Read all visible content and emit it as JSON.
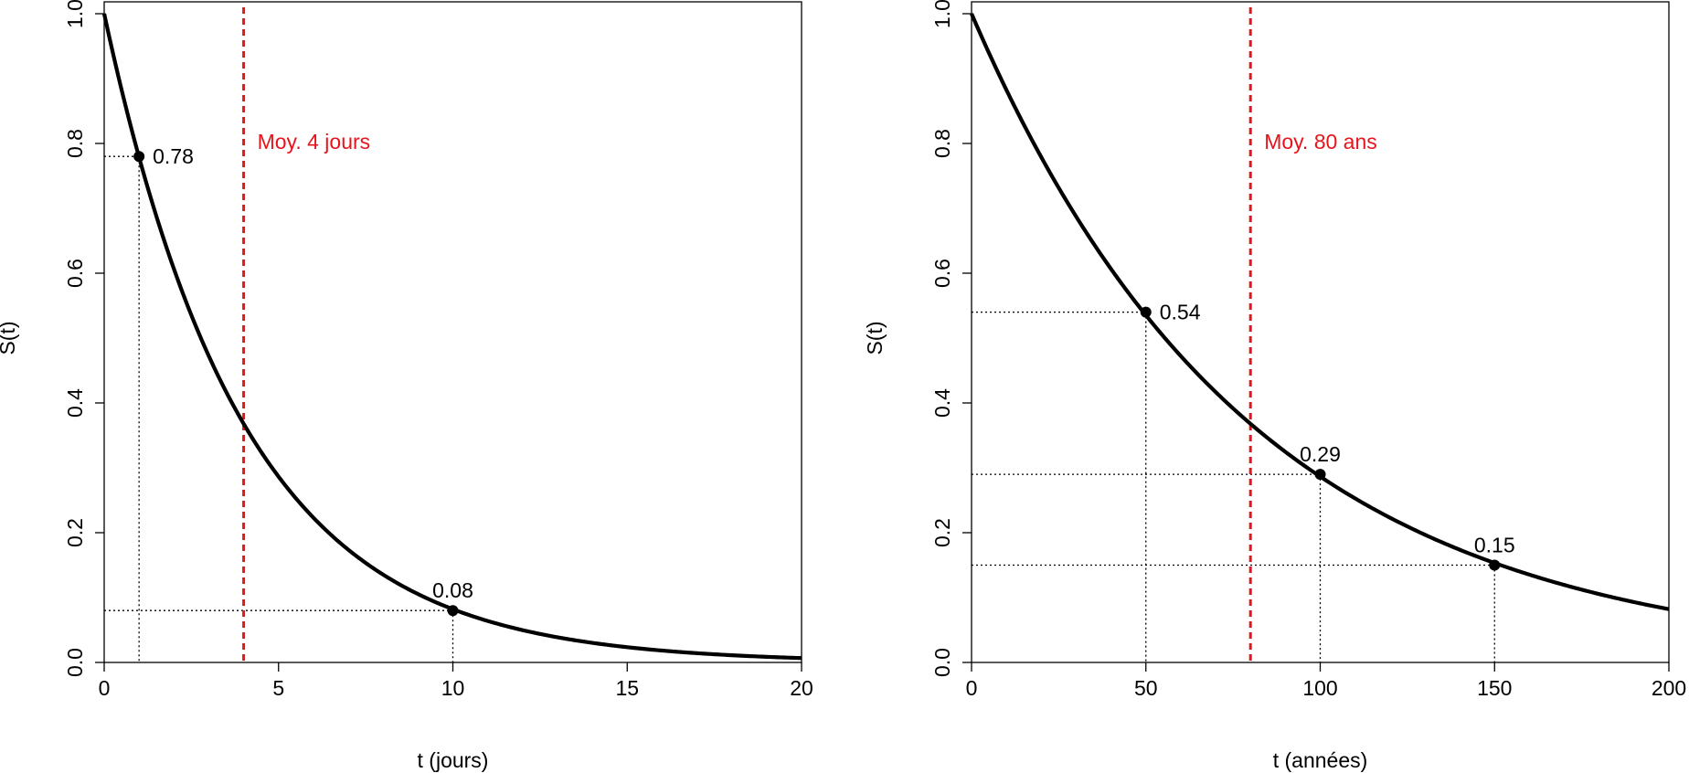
{
  "chart_data": [
    {
      "type": "line",
      "title": "",
      "xlabel": "t (jours)",
      "ylabel": "S(t)",
      "xlim": [
        0,
        20
      ],
      "ylim": [
        0,
        1
      ],
      "xticks": [
        0,
        5,
        10,
        15,
        20
      ],
      "yticks": [
        0.0,
        0.2,
        0.4,
        0.6,
        0.8,
        1.0
      ],
      "ytick_labels": [
        "0.0",
        "0.2",
        "0.4",
        "0.6",
        "0.8",
        "1.0"
      ],
      "curve": {
        "function": "exp(-t/mean)",
        "mean": 4
      },
      "mean_line": {
        "x": 4,
        "label": "Moy. 4 jours",
        "color": "#e8141c"
      },
      "points": [
        {
          "x": 1,
          "y": 0.78,
          "label": "0.78",
          "label_side": "right"
        },
        {
          "x": 10,
          "y": 0.08,
          "label": "0.08",
          "label_side": "above"
        }
      ],
      "grid": false
    },
    {
      "type": "line",
      "title": "",
      "xlabel": "t (années)",
      "ylabel": "S(t)",
      "xlim": [
        0,
        200
      ],
      "ylim": [
        0,
        1
      ],
      "xticks": [
        0,
        50,
        100,
        150,
        200
      ],
      "yticks": [
        0.0,
        0.2,
        0.4,
        0.6,
        0.8,
        1.0
      ],
      "ytick_labels": [
        "0.0",
        "0.2",
        "0.4",
        "0.6",
        "0.8",
        "1.0"
      ],
      "curve": {
        "function": "exp(-t/mean)",
        "mean": 80
      },
      "mean_line": {
        "x": 80,
        "label": "Moy. 80 ans",
        "color": "#e8141c"
      },
      "points": [
        {
          "x": 50,
          "y": 0.54,
          "label": "0.54",
          "label_side": "right"
        },
        {
          "x": 100,
          "y": 0.29,
          "label": "0.29",
          "label_side": "above"
        },
        {
          "x": 150,
          "y": 0.15,
          "label": "0.15",
          "label_side": "above"
        }
      ],
      "grid": false
    }
  ]
}
